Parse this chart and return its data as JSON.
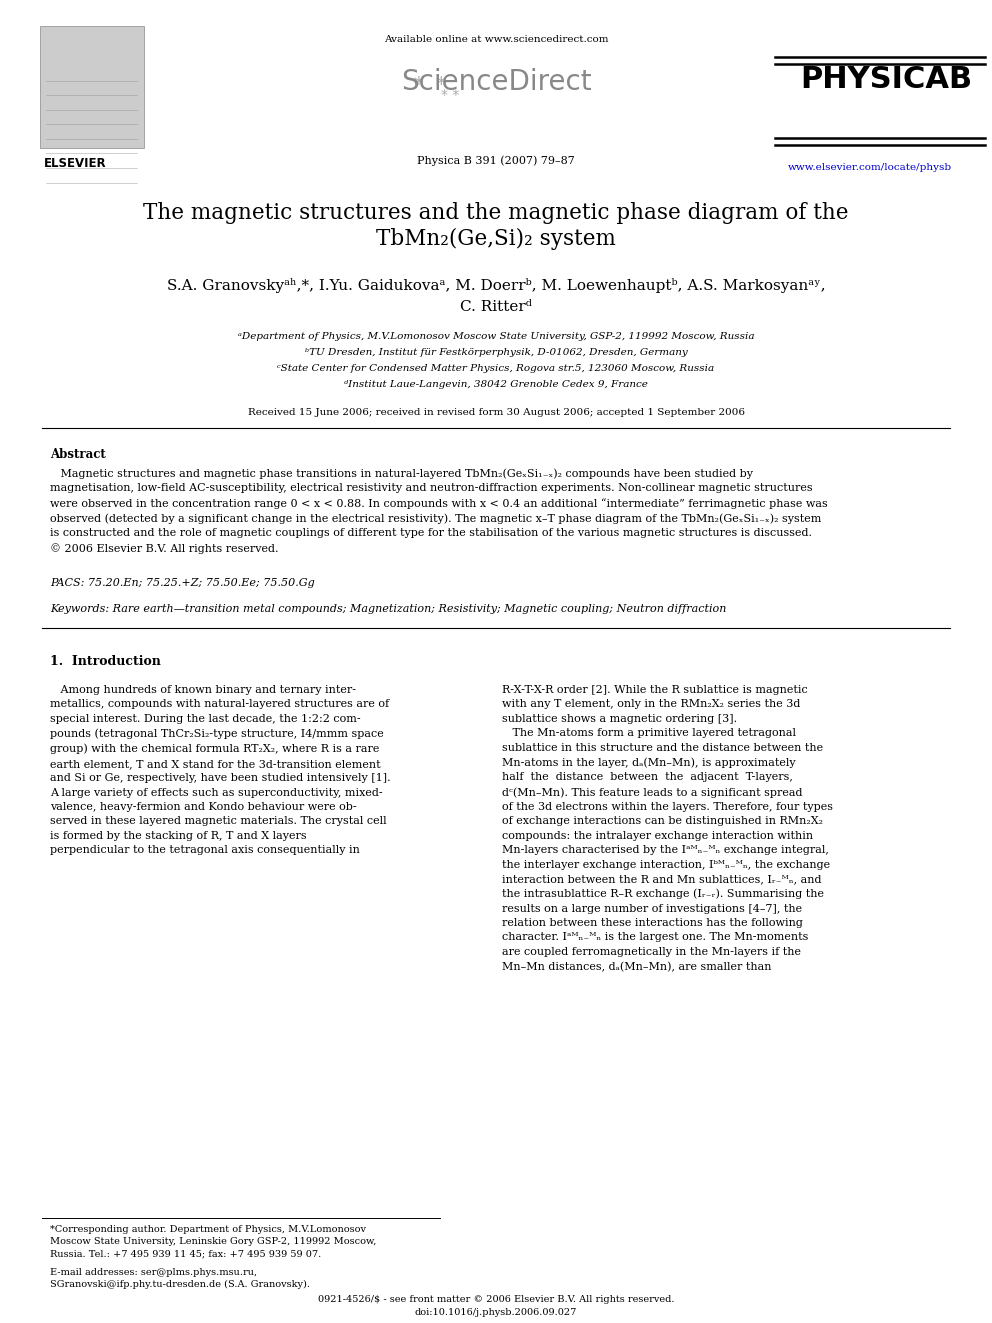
{
  "bg_color": "#ffffff",
  "header_available": "Available online at www.sciencedirect.com",
  "journal_info": "Physica B 391 (2007) 79–87",
  "journal_url": "www.elsevier.com/locate/physb",
  "title_line1": "The magnetic structures and the magnetic phase diagram of the",
  "title_line2": "TbMn₂(Ge,Si)₂ system",
  "authors_line1": "S.A. Granovskyᵃʰ,*, I.Yu. Gaidukovaᵃ, M. Doerrᵇ, M. Loewenhauptᵇ, A.S. Markosyanᵃʸ,",
  "authors_line2": "C. Ritterᵈ",
  "affil_a": "ᵃDepartment of Physics, M.V.Lomonosov Moscow State University, GSP-2, 119992 Moscow, Russia",
  "affil_b": "ᵇTU Dresden, Institut für Festkörperphysik, D-01062, Dresden, Germany",
  "affil_c": "ᶜState Center for Condensed Matter Physics, Rogova str.5, 123060 Moscow, Russia",
  "affil_d": "ᵈInstitut Laue-Langevin, 38042 Grenoble Cedex 9, France",
  "received": "Received 15 June 2006; received in revised form 30 August 2006; accepted 1 September 2006",
  "abstract_title": "Abstract",
  "pacs": "PACS: 75.20.En; 75.25.+Z; 75.50.Ee; 75.50.Gg",
  "keywords": "Keywords: Rare earth—transition metal compounds; Magnetization; Resistivity; Magnetic coupling; Neutron diffraction",
  "section1_title": "1.  Introduction",
  "physica_b": "PHYSICA",
  "physica_b2": "B",
  "elsevier_text": "ELSEVIER",
  "sciencedirect_text": "ScienceDirect",
  "footnote1_line1": "*Corresponding author. Department of Physics, M.V.Lomonosov",
  "footnote1_line2": "Moscow State University, Leninskie Gory GSP-2, 119992 Moscow,",
  "footnote1_line3": "Russia. Tel.: +7 495 939 11 45; fax: +7 495 939 59 07.",
  "footnote2_line1": "E-mail addresses: ser@plms.phys.msu.ru,",
  "footnote2_line2": "SGranovski@ifp.phy.tu-dresden.de (S.A. Granovsky).",
  "copyright1": "0921-4526/$ - see front matter © 2006 Elsevier B.V. All rights reserved.",
  "copyright2": "doi:10.1016/j.physb.2006.09.027"
}
